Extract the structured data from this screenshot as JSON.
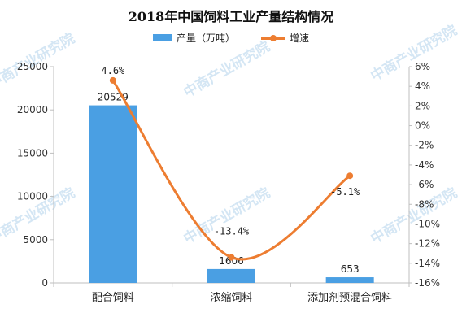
{
  "watermark": {
    "text": "中商产业研究院",
    "color": "#d4e6f4"
  },
  "chart_data": {
    "type": "bar",
    "title": "2018年中国饲料工业产量结构情况",
    "categories": [
      "配合饲料",
      "浓缩饲料",
      "添加剂预混合饲料"
    ],
    "series": [
      {
        "name": "产量（万吨）",
        "type": "bar",
        "axis": "left",
        "color": "#4a9fe3",
        "values": [
          20529,
          1606,
          653
        ],
        "labels": [
          "20529",
          "1606",
          "653"
        ]
      },
      {
        "name": "增速",
        "type": "line",
        "axis": "right",
        "color": "#ed7d31",
        "values": [
          4.6,
          -13.4,
          -5.1
        ],
        "labels": [
          "4.6%",
          "-13.4%",
          "-5.1%"
        ]
      }
    ],
    "y_left": {
      "min": 0,
      "max": 25000,
      "ticks": [
        0,
        5000,
        10000,
        15000,
        20000,
        25000
      ],
      "tick_labels": [
        "0",
        "5000",
        "10000",
        "15000",
        "20000",
        "25000"
      ]
    },
    "y_right": {
      "min": -16,
      "max": 6,
      "ticks": [
        6,
        4,
        2,
        0,
        -2,
        -4,
        -6,
        -8,
        -10,
        -12,
        -14,
        -16
      ],
      "tick_labels": [
        "6%",
        "4%",
        "2%",
        "0%",
        "-2%",
        "-4%",
        "-6%",
        "-8%",
        "-10%",
        "-12%",
        "-14%",
        "-16%"
      ]
    },
    "legend_position": "top-center",
    "grid": false
  }
}
